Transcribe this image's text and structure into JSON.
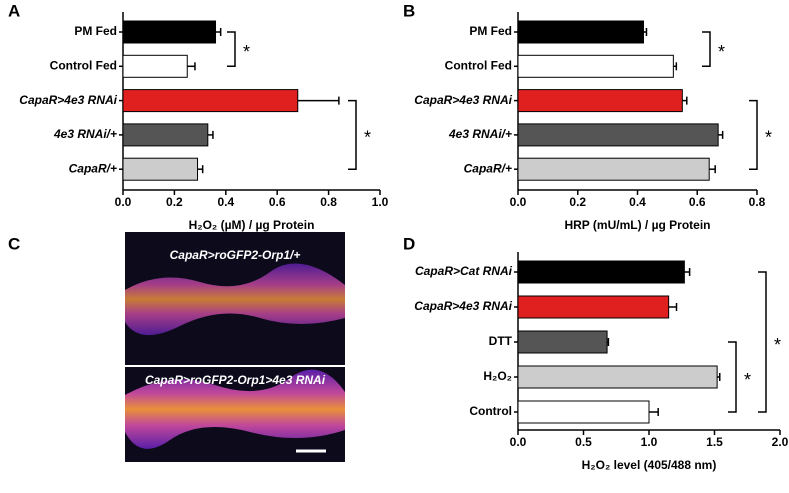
{
  "chart_data": [
    {
      "type": "bar",
      "panel": "A",
      "categories": [
        "PM Fed",
        "Control Fed",
        "CapaR>4e3 RNAi",
        "4e3 RNAi/+",
        "CapaR/+"
      ],
      "italic_categories": [
        false,
        false,
        true,
        true,
        true
      ],
      "values": [
        0.36,
        0.25,
        0.68,
        0.33,
        0.29
      ],
      "errors": [
        0.02,
        0.03,
        0.16,
        0.02,
        0.02
      ],
      "colors": [
        "#000000",
        "#ffffff",
        "#e0201f",
        "#555555",
        "#cccccc"
      ],
      "xlabel": "H₂O₂ (µM) / µg Protein",
      "xlim": [
        0,
        1
      ],
      "xticks": [
        {
          "value": 0,
          "label": "0.0"
        },
        0.2,
        0.4,
        0.6,
        0.8,
        {
          "value": 1,
          "label": "1.0"
        }
      ],
      "annotations": [
        "*",
        "*"
      ]
    },
    {
      "type": "bar",
      "panel": "B",
      "categories": [
        "PM Fed",
        "Control Fed",
        "CapaR>4e3 RNAi",
        "4e3 RNAi/+",
        "CapaR/+"
      ],
      "italic_categories": [
        false,
        false,
        true,
        true,
        true
      ],
      "values": [
        0.42,
        0.52,
        0.55,
        0.67,
        0.64
      ],
      "errors": [
        0.01,
        0.01,
        0.015,
        0.015,
        0.02
      ],
      "colors": [
        "#000000",
        "#ffffff",
        "#e0201f",
        "#555555",
        "#cccccc"
      ],
      "xlabel": "HRP (mU/mL) / µg Protein",
      "xlim": [
        0,
        0.8
      ],
      "xticks": [
        {
          "value": 0,
          "label": "0.0"
        },
        0.2,
        0.4,
        0.6,
        0.8
      ],
      "annotations": [
        "*",
        "*"
      ]
    },
    {
      "type": "bar",
      "panel": "D",
      "categories": [
        "CapaR>Cat RNAi",
        "CapaR>4e3 RNAi",
        "DTT",
        "H₂O₂",
        "Control"
      ],
      "italic_categories": [
        true,
        true,
        false,
        false,
        false
      ],
      "values": [
        1.27,
        1.15,
        0.68,
        1.52,
        1.0
      ],
      "errors": [
        0.04,
        0.06,
        0.01,
        0.02,
        0.07
      ],
      "colors": [
        "#000000",
        "#e0201f",
        "#555555",
        "#cccccc",
        "#ffffff"
      ],
      "xlabel": "H₂O₂ level (405/488 nm)",
      "xlim": [
        0,
        2
      ],
      "xticks": [
        {
          "value": 0,
          "label": "0.0"
        },
        0.5,
        {
          "value": 1,
          "label": "1.0"
        },
        1.5,
        {
          "value": 2,
          "label": "2.0"
        }
      ],
      "annotations": [
        "*",
        "*"
      ]
    }
  ],
  "image_panel": {
    "panel": "C",
    "captions": [
      "CapaR>roGFP2-Orp1/+",
      "CapaR>roGFP2-Orp1>4e3 RNAi"
    ]
  }
}
